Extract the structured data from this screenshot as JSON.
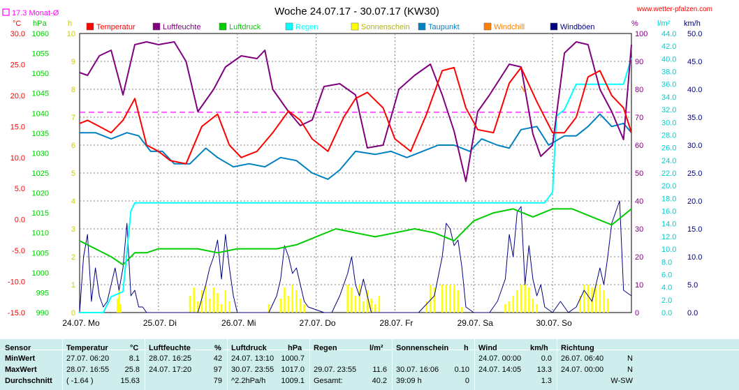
{
  "header": {
    "title": "Woche 24.07.17 - 30.07.17 (KW30)",
    "site": "www.wetter-pfalzen.com",
    "monat_label": "17.3 Monat-Ø"
  },
  "units": {
    "temp": "°C",
    "press": "hPa",
    "sun": "h",
    "hum": "%",
    "rain": "l/m²",
    "wind": "km/h"
  },
  "colors": {
    "temp": "#ff0000",
    "hum": "#800080",
    "press": "#00cc00",
    "rain": "#00ffff",
    "sun": "#ffff00",
    "dew": "#0080c0",
    "chill": "#ff8000",
    "gust": "#000080",
    "plot_bg": "#ffffff",
    "grid": "#808080",
    "stats_bg": "#cdeeed"
  },
  "chart_data": {
    "type": "line",
    "x_labels": [
      "24.07. Mo",
      "25.07. Di",
      "26.07. Mi",
      "27.07. Do",
      "28.07. Fr",
      "29.07. Sa",
      "30.07. So"
    ],
    "x_range_days": [
      0,
      7
    ],
    "legend": [
      "Temperatur",
      "Luftfeuchte",
      "Luftdruck",
      "Regen",
      "Sonnenschein",
      "Taupunkt",
      "Windchill",
      "Windböen"
    ],
    "legend_placement": "top",
    "grid": true,
    "axes": {
      "temp": {
        "range": [
          -15,
          30
        ],
        "ticks": [
          "30.0",
          "25.0",
          "20.0",
          "15.0",
          "10.0",
          "5.0",
          "0.0",
          "-5.0",
          "-10.0",
          "-15.0"
        ]
      },
      "press": {
        "range": [
          990,
          1060
        ],
        "ticks": [
          "1060",
          "1055",
          "1050",
          "1045",
          "1040",
          "1035",
          "1030",
          "1025",
          "1020",
          "1015",
          "1010",
          "1005",
          "1000",
          "995",
          "990"
        ]
      },
      "sun": {
        "range": [
          0,
          10
        ],
        "ticks": [
          "10",
          "9",
          "8",
          "7",
          "6",
          "5",
          "4",
          "3",
          "2",
          "1",
          "0"
        ]
      },
      "hum": {
        "range": [
          0,
          100
        ],
        "ticks": [
          "100",
          "90",
          "80",
          "70",
          "60",
          "50",
          "40",
          "30",
          "20",
          "10",
          "0"
        ]
      },
      "rain": {
        "range": [
          0,
          44
        ],
        "ticks": [
          "44.0",
          "42.0",
          "40.0",
          "38.0",
          "36.0",
          "34.0",
          "32.0",
          "30.0",
          "28.0",
          "26.0",
          "24.0",
          "22.0",
          "20.0",
          "18.0",
          "16.0",
          "14.0",
          "12.0",
          "10.0",
          "8.0",
          "6.0",
          "4.0",
          "2.0",
          "0.0"
        ]
      },
      "wind": {
        "range": [
          0,
          50
        ],
        "ticks": [
          "50.0",
          "45.0",
          "40.0",
          "35.0",
          "30.0",
          "25.0",
          "20.0",
          "15.0",
          "10.0",
          "5.0",
          "0.0"
        ]
      }
    },
    "monat_avg_temp": 17.3,
    "series": [
      {
        "name": "Temperatur",
        "axis": "temp",
        "color": "#ff0000",
        "x": [
          0,
          0.1,
          0.25,
          0.4,
          0.55,
          0.7,
          0.85,
          1.0,
          1.15,
          1.35,
          1.55,
          1.75,
          1.9,
          2.05,
          2.25,
          2.45,
          2.65,
          2.8,
          2.95,
          3.15,
          3.35,
          3.5,
          3.65,
          3.85,
          4.0,
          4.2,
          4.4,
          4.6,
          4.75,
          4.9,
          5.05,
          5.25,
          5.45,
          5.6,
          5.8,
          6.0,
          6.15,
          6.3,
          6.45,
          6.6,
          6.75,
          6.9,
          7.0
        ],
        "y": [
          15.5,
          16.0,
          15.0,
          14.0,
          16.0,
          19.5,
          12.0,
          11.0,
          9.5,
          9.0,
          15.0,
          17.0,
          12.0,
          10.0,
          11.0,
          14.0,
          17.5,
          16.0,
          13.0,
          11.0,
          16.5,
          19.5,
          20.5,
          18.0,
          13.0,
          11.0,
          17.0,
          24.0,
          24.5,
          18.0,
          14.5,
          14.0,
          22.0,
          24.5,
          19.0,
          14.0,
          14.0,
          16.5,
          23.0,
          24.0,
          20.0,
          18.0,
          14.0
        ]
      },
      {
        "name": "Luftfeuchte",
        "axis": "hum",
        "color": "#800080",
        "x": [
          0,
          0.1,
          0.25,
          0.4,
          0.55,
          0.7,
          0.85,
          1.0,
          1.2,
          1.35,
          1.5,
          1.7,
          1.85,
          2.05,
          2.25,
          2.35,
          2.45,
          2.65,
          2.8,
          2.95,
          3.1,
          3.3,
          3.5,
          3.65,
          3.85,
          4.05,
          4.25,
          4.45,
          4.6,
          4.75,
          4.9,
          5.05,
          5.2,
          5.45,
          5.6,
          5.75,
          5.85,
          6.0,
          6.15,
          6.3,
          6.45,
          6.6,
          6.75,
          6.9,
          7.0
        ],
        "y": [
          86,
          85,
          92,
          94,
          78,
          96,
          97,
          96,
          97,
          90,
          72,
          80,
          88,
          92,
          91,
          94,
          80,
          72,
          67,
          69,
          81,
          82,
          78,
          59,
          60,
          80,
          85,
          89,
          78,
          65,
          47,
          72,
          78,
          89,
          88,
          64,
          56,
          60,
          93,
          97,
          96,
          80,
          72,
          62,
          96
        ]
      },
      {
        "name": "Luftdruck",
        "axis": "press",
        "color": "#00cc00",
        "x": [
          0,
          0.2,
          0.4,
          0.55,
          0.7,
          0.85,
          1.0,
          1.25,
          1.5,
          1.75,
          2.0,
          2.25,
          2.5,
          2.75,
          3.0,
          3.25,
          3.5,
          3.75,
          4.0,
          4.25,
          4.5,
          4.75,
          5.0,
          5.25,
          5.5,
          5.75,
          6.0,
          6.25,
          6.5,
          6.75,
          7.0
        ],
        "y": [
          1008,
          1006,
          1004,
          1002,
          1005,
          1005,
          1006,
          1006,
          1006,
          1005,
          1006,
          1006,
          1006,
          1007,
          1009,
          1011,
          1010,
          1009,
          1010,
          1011,
          1010,
          1008,
          1013,
          1015,
          1016,
          1014,
          1016,
          1016,
          1014,
          1012,
          1016
        ]
      },
      {
        "name": "Regen",
        "axis": "rain",
        "color": "#00ffff",
        "x": [
          0,
          0.3,
          0.4,
          0.55,
          0.65,
          0.7,
          4.0,
          5.0,
          5.9,
          6.0,
          6.05,
          6.15,
          6.3,
          6.5,
          6.9,
          7.0
        ],
        "y": [
          0,
          0,
          2.5,
          3.3,
          16.0,
          17.3,
          17.3,
          17.3,
          17.3,
          19.0,
          31.0,
          32.0,
          36.0,
          36.0,
          36.0,
          40.2
        ]
      },
      {
        "name": "Taupunkt",
        "axis": "temp",
        "color": "#0080c0",
        "x": [
          0,
          0.2,
          0.4,
          0.5,
          0.6,
          0.75,
          0.9,
          1.05,
          1.2,
          1.4,
          1.6,
          1.75,
          1.95,
          2.15,
          2.35,
          2.55,
          2.75,
          2.95,
          3.15,
          3.3,
          3.5,
          3.75,
          3.95,
          4.15,
          4.35,
          4.55,
          4.75,
          4.95,
          5.1,
          5.3,
          5.45,
          5.6,
          5.8,
          5.95,
          6.15,
          6.3,
          6.45,
          6.6,
          6.75,
          6.9,
          7.0
        ],
        "y": [
          14.0,
          14.0,
          13.0,
          13.5,
          14.0,
          13.5,
          11.0,
          11.0,
          9.0,
          9.0,
          11.5,
          10.0,
          8.5,
          9.0,
          8.5,
          10.0,
          9.5,
          7.5,
          6.5,
          8.0,
          11.0,
          10.5,
          11.0,
          10.0,
          11.0,
          12.0,
          12.0,
          11.0,
          13.0,
          12.0,
          11.5,
          14.5,
          15.0,
          12.0,
          13.5,
          13.5,
          15.0,
          17.0,
          15.0,
          15.5,
          14.0
        ]
      },
      {
        "name": "Windchill",
        "axis": "temp",
        "color": "#ff8000",
        "x": [
          5.6,
          5.65
        ],
        "y": [
          21.5,
          20.5
        ]
      },
      {
        "name": "Sonnenschein",
        "axis": "sun",
        "color": "#ffff00",
        "x": [
          0.48,
          0.5,
          0.52,
          1.4,
          1.45,
          1.5,
          1.55,
          1.6,
          1.65,
          1.7,
          1.75,
          1.8,
          1.85,
          1.9,
          2.4,
          2.55,
          2.6,
          2.65,
          2.7,
          2.75,
          2.8,
          2.85,
          3.4,
          3.45,
          3.5,
          3.55,
          3.6,
          3.65,
          3.7,
          3.75,
          3.8,
          4.4,
          4.45,
          4.5,
          4.6,
          4.65,
          4.7,
          4.75,
          4.8,
          4.85,
          5.4,
          5.45,
          5.5,
          5.55,
          5.6,
          5.65,
          5.7,
          5.75,
          5.8,
          6.35,
          6.4,
          6.45,
          6.5,
          6.55,
          6.6,
          6.65,
          6.7
        ],
        "y": [
          0.5,
          0.8,
          0.3,
          0.6,
          0.9,
          0.4,
          0.8,
          1.0,
          0.5,
          0.9,
          0.7,
          0.3,
          0.8,
          0.4,
          0.3,
          0.5,
          0.9,
          0.6,
          1.0,
          0.8,
          0.5,
          0.3,
          1.0,
          0.9,
          0.6,
          1.0,
          0.4,
          0.8,
          0.5,
          0.3,
          0.6,
          0.4,
          1.0,
          0.9,
          1.0,
          1.0,
          1.0,
          1.0,
          0.8,
          0.2,
          0.3,
          0.4,
          0.6,
          0.8,
          1.0,
          1.0,
          0.9,
          0.5,
          0.3,
          0.6,
          1.0,
          1.0,
          0.9,
          1.0,
          1.0,
          0.8,
          0.5
        ]
      },
      {
        "name": "Windböen",
        "axis": "wind",
        "color": "#000080",
        "x": [
          0,
          0.05,
          0.1,
          0.15,
          0.2,
          0.25,
          0.3,
          0.35,
          0.4,
          0.45,
          0.5,
          0.55,
          0.6,
          0.65,
          0.7,
          0.75,
          0.8,
          0.85,
          1.0,
          1.5,
          1.6,
          1.65,
          1.7,
          1.75,
          1.8,
          1.85,
          1.9,
          1.95,
          2.0,
          2.4,
          2.5,
          2.55,
          2.6,
          2.65,
          2.7,
          2.75,
          2.8,
          2.85,
          2.9,
          3.1,
          3.2,
          3.3,
          3.35,
          3.4,
          3.45,
          3.5,
          3.55,
          3.6,
          3.7,
          4.3,
          4.5,
          4.6,
          4.65,
          4.7,
          4.75,
          4.8,
          4.85,
          4.9,
          5.0,
          5.2,
          5.3,
          5.35,
          5.4,
          5.45,
          5.5,
          5.55,
          5.6,
          5.65,
          5.7,
          5.75,
          5.8,
          5.85,
          5.9,
          6.0,
          6.1,
          6.2,
          6.3,
          6.4,
          6.5,
          6.6,
          6.65,
          6.7,
          6.75,
          6.8,
          6.85,
          6.9,
          7.0
        ],
        "y": [
          0,
          10,
          14,
          2,
          8,
          3,
          1,
          2,
          5,
          8,
          4,
          8,
          16,
          3,
          4,
          1,
          1,
          0,
          0,
          0,
          5,
          8,
          10,
          13,
          6,
          14,
          8,
          3,
          0,
          0,
          3,
          6,
          12,
          10,
          7,
          8,
          5,
          2,
          1,
          0,
          0,
          3,
          5,
          7,
          10,
          5,
          3,
          6,
          0,
          0,
          3,
          10,
          16,
          15,
          12,
          13,
          8,
          1,
          0,
          0,
          2,
          4,
          6,
          14,
          10,
          18,
          19,
          5,
          12,
          6,
          3,
          5,
          1,
          0,
          2,
          0,
          1,
          4,
          2,
          8,
          5,
          10,
          16,
          18,
          20,
          4,
          3
        ]
      }
    ]
  },
  "stats": {
    "headers": {
      "sensor": "Sensor",
      "temp": "Temperatur",
      "temp_unit": "°C",
      "hum": "Luftfeuchte",
      "hum_unit": "%",
      "press": "Luftdruck",
      "press_unit": "hPa",
      "rain": "Regen",
      "rain_unit": "l/m²",
      "sun": "Sonnenschein",
      "sun_unit": "h",
      "wind": "Wind",
      "wind_unit": "km/h",
      "dir": "Richtung"
    },
    "rows": [
      {
        "label": "MinWert",
        "temp_t": "27.07.  06:20",
        "temp_v": "8.1",
        "hum_t": "28.07.  16:25",
        "hum_v": "42",
        "press_t": "24.07.  13:10",
        "press_v": "1000.7",
        "rain_t": "",
        "rain_v": "",
        "sun_t": "",
        "sun_v": "",
        "wind_t": "24.07.  00:00",
        "wind_v": "0.0",
        "dir_t": "26.07.  06:40",
        "dir_v": "N"
      },
      {
        "label": "MaxWert",
        "temp_t": "28.07.  16:55",
        "temp_v": "25.8",
        "hum_t": "24.07.  17:20",
        "hum_v": "97",
        "press_t": "30.07.  23:55",
        "press_v": "1017.0",
        "rain_t": "29.07.  23:55",
        "rain_v": "11.6",
        "sun_t": "30.07.  16:06",
        "sun_v": "0.10",
        "wind_t": "24.07.  14:05",
        "wind_v": "13.3",
        "dir_t": "24.07.  00:00",
        "dir_v": "N"
      },
      {
        "label": "Durchschnitt",
        "temp_t": "( -1.64 )",
        "temp_v": "15.63",
        "hum_t": "",
        "hum_v": "79",
        "press_t": "^2.2hPa/h",
        "press_v": "1009.1",
        "rain_t": "Gesamt:",
        "rain_v": "40.2",
        "sun_t": "39:09 h",
        "sun_v": "0",
        "wind_t": "",
        "wind_v": "1.3",
        "dir_t": "",
        "dir_v": "W-SW"
      }
    ]
  }
}
